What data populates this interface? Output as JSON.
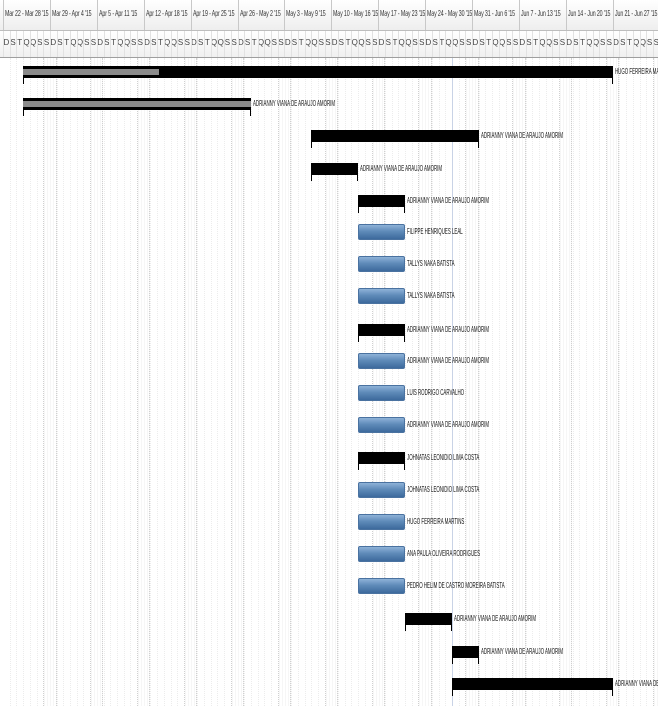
{
  "timescale": {
    "weeks": [
      "Mar 22 - Mar 28 '15",
      "Mar 29 - Apr 4 '15",
      "Apr 5 - Apr 11 '15",
      "Apr 12 - Apr 18 '15",
      "Apr 19 - Apr 25 '15",
      "Apr 26 - May 2 '15",
      "May 3 - May 9 '15",
      "May 10 - May 16 '15",
      "May 17 - May 23 '15",
      "May 24 - May 30 '15",
      "May 31 - Jun 6 '15",
      "Jun 7 - Jun 13 '15",
      "Jun 14 - Jun 20 '15",
      "Jun 21 - Jun 27 '15"
    ],
    "day_letters": [
      "D",
      "S",
      "T",
      "Q",
      "Q",
      "S",
      "S"
    ]
  },
  "tasks": [
    {
      "type": "summary",
      "start_day": 3,
      "end_day": 91,
      "progress": 0.23,
      "label": "HUGO FERREIRA MARTINS"
    },
    {
      "type": "summary",
      "start_day": 3,
      "end_day": 37,
      "progress": 1.0,
      "label": "ADRIANNY VIANA DE ARAUJO AMORIM"
    },
    {
      "type": "summary",
      "start_day": 46,
      "end_day": 71,
      "progress": 0,
      "label": "ADRIANNY VIANA DE ARAUJO AMORIM"
    },
    {
      "type": "summary",
      "start_day": 46,
      "end_day": 53,
      "progress": 0,
      "label": "ADRIANNY VIANA DE ARAUJO AMORIM"
    },
    {
      "type": "summary",
      "start_day": 53,
      "end_day": 60,
      "progress": 0,
      "label": "ADRIANNY VIANA DE ARAUJO AMORIM"
    },
    {
      "type": "task",
      "start_day": 53,
      "end_day": 60,
      "progress": 0,
      "label": "FILIPPE HENRIQUES LEAL"
    },
    {
      "type": "task",
      "start_day": 53,
      "end_day": 60,
      "progress": 0,
      "label": "TALLYS NAKA BATISTA"
    },
    {
      "type": "task",
      "start_day": 53,
      "end_day": 60,
      "progress": 0,
      "label": "TALLYS NAKA BATISTA"
    },
    {
      "type": "summary",
      "start_day": 53,
      "end_day": 60,
      "progress": 0,
      "label": "ADRIANNY VIANA DE ARAUJO AMORIM"
    },
    {
      "type": "task",
      "start_day": 53,
      "end_day": 60,
      "progress": 0,
      "label": "ADRIANNY VIANA DE ARAUJO AMORIM"
    },
    {
      "type": "task",
      "start_day": 53,
      "end_day": 60,
      "progress": 0,
      "label": "LUIS RODRIGO CARVALHO"
    },
    {
      "type": "task",
      "start_day": 53,
      "end_day": 60,
      "progress": 0,
      "label": "ADRIANNY VIANA DE ARAUJO AMORIM"
    },
    {
      "type": "summary",
      "start_day": 53,
      "end_day": 60,
      "progress": 0,
      "label": "JOHNATAS LEONIDIO LIMA COSTA"
    },
    {
      "type": "task",
      "start_day": 53,
      "end_day": 60,
      "progress": 0,
      "label": "JOHNATAS LEONIDIO LIMA COSTA"
    },
    {
      "type": "task",
      "start_day": 53,
      "end_day": 60,
      "progress": 0,
      "label": "HUGO FERREIRA MARTINS"
    },
    {
      "type": "task",
      "start_day": 53,
      "end_day": 60,
      "progress": 0,
      "label": "ANA PAULA OLIVEIRA RODRIGUES"
    },
    {
      "type": "task",
      "start_day": 53,
      "end_day": 60,
      "progress": 0,
      "label": "PEDRO HELIM DE CASTRO MOREIRA BATISTA"
    },
    {
      "type": "summary",
      "start_day": 60,
      "end_day": 67,
      "progress": 0,
      "label": "ADRIANNY VIANA DE ARAUJO AMORIM"
    },
    {
      "type": "summary",
      "start_day": 67,
      "end_day": 71,
      "progress": 0,
      "label": "ADRIANNY VIANA DE ARAUJO AMORIM"
    },
    {
      "type": "summary",
      "start_day": 67,
      "end_day": 91,
      "progress": 0,
      "label": "ADRIANNY VIANA DE"
    }
  ],
  "colors": {
    "summary": "#000000",
    "task": "#5f8bb9",
    "progress": "#8a8a8a"
  }
}
